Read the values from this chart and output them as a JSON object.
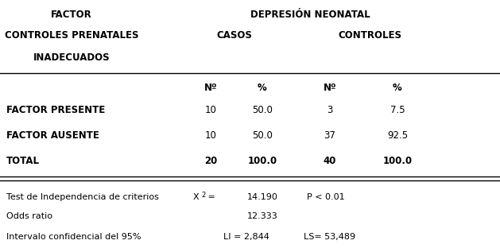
{
  "title_col1": "FACTOR",
  "title_col1_line2": "CONTROLES PRENATALES",
  "title_col1_line3": "INADECUADOS",
  "title_depresion": "DEPRESIÓN NEONATAL",
  "title_casos": "CASOS",
  "title_controles": "CONTROLES",
  "header_n": "Nº",
  "header_pct": "%",
  "rows": [
    {
      "label": "FACTOR PRESENTE",
      "casos_n": "10",
      "casos_pct": "50.0",
      "ctrl_n": "3",
      "ctrl_pct": "7.5"
    },
    {
      "label": "FACTOR AUSENTE",
      "casos_n": "10",
      "casos_pct": "50.0",
      "ctrl_n": "37",
      "ctrl_pct": "92.5"
    }
  ],
  "total_label": "TOTAL",
  "total_casos_n": "20",
  "total_casos_pct": "100.0",
  "total_ctrl_n": "40",
  "total_ctrl_pct": "100.0",
  "stat1_label": "Test de Independencia de criterios",
  "stat1_x2": "X",
  "stat1_x2_sup": "2",
  "stat1_x2_eq": " =",
  "stat1_x2_val": "14.190",
  "stat1_p": "P < 0.01",
  "stat2_label": "Odds ratio",
  "stat2_val": "12.333",
  "stat3_label": "Intervalo confidencial del 95%",
  "stat3_li": "LI = 2,844",
  "stat3_ls": "LS= 53,489",
  "bg_color": "#ffffff",
  "text_color": "#000000",
  "font_size": 8.5,
  "small_font": 8.0
}
